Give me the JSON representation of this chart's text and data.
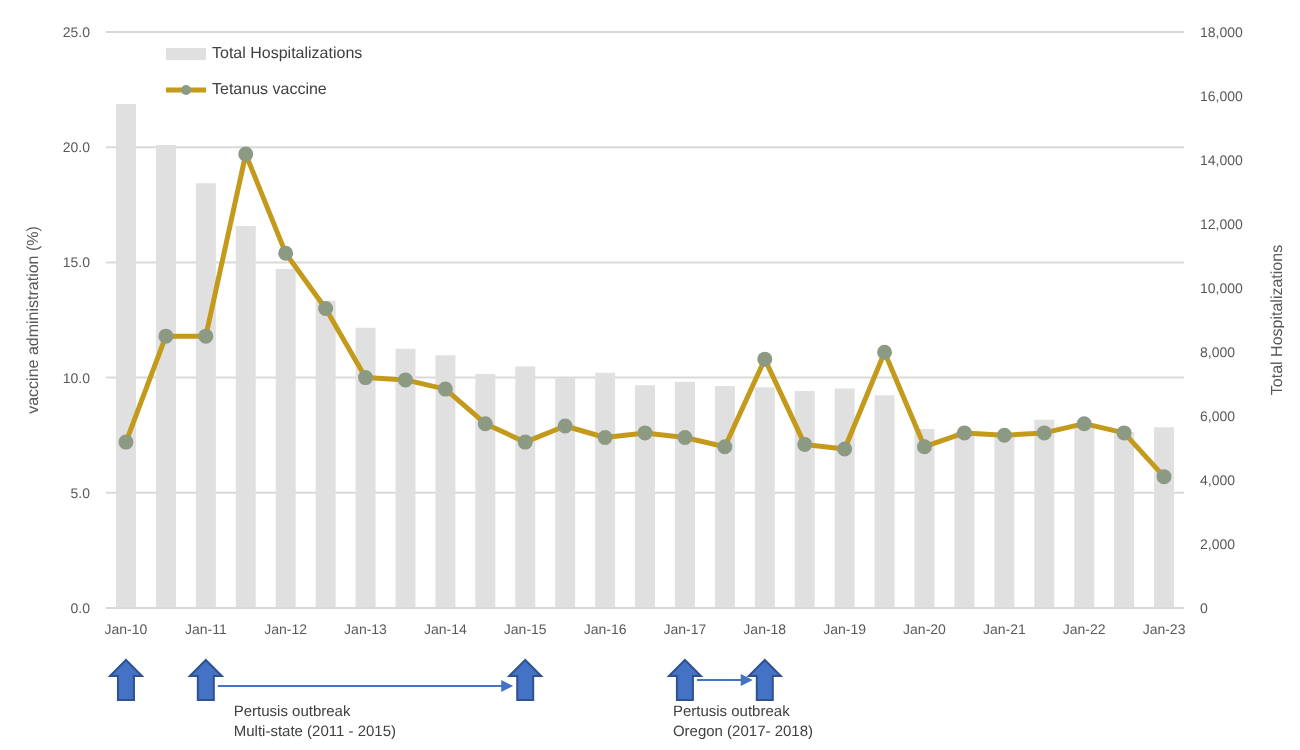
{
  "chart_data": {
    "type": "bar",
    "categories": [
      "Jan-10",
      null,
      "Jan-11",
      null,
      "Jan-12",
      null,
      "Jan-13",
      null,
      "Jan-14",
      null,
      "Jan-15",
      null,
      "Jan-16",
      null,
      "Jan-17",
      null,
      "Jan-18",
      null,
      "Jan-19",
      null,
      "Jan-20",
      null,
      "Jan-21",
      null,
      "Jan-22",
      null,
      "Jan-23"
    ],
    "series": [
      {
        "name": "Total Hospitalizations",
        "axis": "y2",
        "color": "#e0e0e0",
        "values": [
          15750,
          14470,
          13270,
          11940,
          10590,
          9600,
          8760,
          8100,
          7900,
          7310,
          7550,
          7190,
          7350,
          6960,
          7070,
          6940,
          6900,
          6780,
          6860,
          6650,
          5590,
          5500,
          5440,
          5880,
          5690,
          5500,
          5650
        ]
      },
      {
        "name": "Tetanus vaccine",
        "type": "line",
        "color": "#c49a1c",
        "values": [
          7.2,
          11.8,
          11.8,
          19.7,
          15.4,
          13.0,
          10.0,
          9.9,
          9.5,
          8.0,
          7.2,
          7.9,
          7.4,
          7.6,
          7.4,
          7.0,
          10.8,
          7.1,
          6.9,
          11.1,
          7.0,
          7.6,
          7.5,
          7.6,
          8.0,
          7.6,
          5.7
        ]
      }
    ],
    "ylabel": "vaccine administration (%)",
    "y2label": "Total Hospitalizations",
    "ylim": [
      0,
      25
    ],
    "yticks": [
      {
        "value": 0,
        "label": "0.0"
      },
      {
        "value": 5,
        "label": "5.0"
      },
      {
        "value": 10,
        "label": "10.0"
      },
      {
        "value": 15,
        "label": "15.0"
      },
      {
        "value": 20,
        "label": "20.0"
      },
      {
        "value": 25,
        "label": "25.0"
      }
    ],
    "y2lim": [
      0,
      18000
    ],
    "y2ticks": [
      0,
      {
        "value": 2000,
        "label": "2,000"
      },
      {
        "value": 4000,
        "label": "4,000"
      },
      {
        "value": 6000,
        "label": "6,000"
      },
      {
        "value": 8000,
        "label": "8,000"
      },
      {
        "value": 10000,
        "label": "10,000"
      },
      {
        "value": 12000,
        "label": "12,000"
      },
      {
        "value": 14000,
        "label": "14,000"
      },
      {
        "value": 16000,
        "label": "16,000"
      },
      {
        "value": 18000,
        "label": "18,000"
      }
    ],
    "grid": "y",
    "legend": "top left",
    "marker": "circle",
    "annotations": [
      "Pertusis outbreak\nMulti-state (2011 - 2015)",
      "Pertusis outbreak\nOregon (2017- 2018)"
    ]
  }
}
